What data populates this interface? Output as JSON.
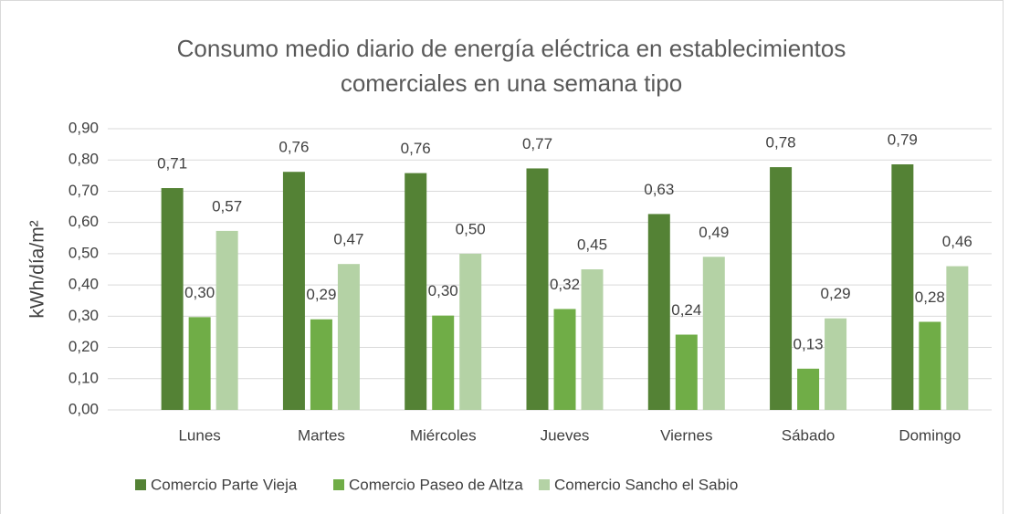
{
  "chart_data": {
    "type": "bar",
    "title": "Consumo medio diario de energía eléctrica en establecimientos comerciales en una semana tipo",
    "y_label": "kWh/día/m²",
    "categories": [
      "Lunes",
      "Martes",
      "Miércoles",
      "Jueves",
      "Viernes",
      "Sábado",
      "Domingo"
    ],
    "series": [
      {
        "name": "Comercio Parte Vieja",
        "color": "#548235",
        "values": [
          0.71,
          0.762,
          0.758,
          0.773,
          0.627,
          0.777,
          0.786
        ],
        "value_labels": [
          "0,71",
          "0,76",
          "0,76",
          "0,77",
          "0,63",
          "0,78",
          "0,79"
        ]
      },
      {
        "name": "Comercio Paseo de Altza",
        "color": "#70ad47",
        "values": [
          0.297,
          0.29,
          0.302,
          0.323,
          0.241,
          0.132,
          0.282
        ],
        "value_labels": [
          "0,30",
          "0,29",
          "0,30",
          "0,32",
          "0,24",
          "0,13",
          "0,28"
        ]
      },
      {
        "name": "Comercio Sancho el Sabio",
        "color": "#b4d2a5",
        "values": [
          0.573,
          0.467,
          0.5,
          0.45,
          0.49,
          0.293,
          0.46
        ],
        "value_labels": [
          "0,57",
          "0,47",
          "0,50",
          "0,45",
          "0,49",
          "0,29",
          "0,46"
        ]
      }
    ],
    "ylim": [
      0,
      0.9
    ],
    "yticks": [
      {
        "value": 0,
        "label": "0,00"
      },
      {
        "value": 0.1,
        "label": "0,10"
      },
      {
        "value": 0.2,
        "label": "0,20"
      },
      {
        "value": 0.3,
        "label": "0,30"
      },
      {
        "value": 0.4,
        "label": "0,40"
      },
      {
        "value": 0.5,
        "label": "0,50"
      },
      {
        "value": 0.6,
        "label": "0,60"
      },
      {
        "value": 0.7,
        "label": "0,70"
      },
      {
        "value": 0.8,
        "label": "0,80"
      },
      {
        "value": 0.9,
        "label": "0,90"
      }
    ],
    "grid": true,
    "legend": "bottom"
  }
}
